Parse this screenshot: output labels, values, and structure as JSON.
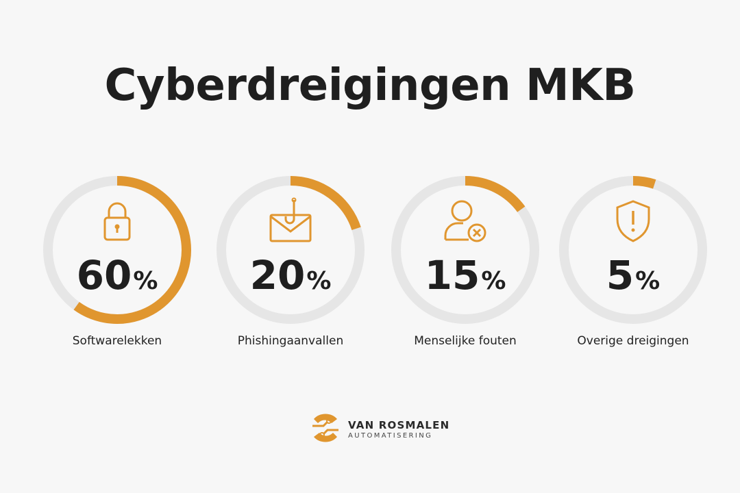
{
  "chart_data": {
    "type": "gauge",
    "title": "Cyberdreigingen MKB",
    "unit": "%",
    "items": [
      {
        "label": "Softwarelekken",
        "value": 60,
        "icon": "lock-icon"
      },
      {
        "label": "Phishingaanvallen",
        "value": 20,
        "icon": "phishing-envelope-icon"
      },
      {
        "label": "Menselijke fouten",
        "value": 15,
        "icon": "user-error-icon"
      },
      {
        "label": "Overige dreigingen",
        "value": 5,
        "icon": "shield-alert-icon"
      }
    ],
    "range": [
      0,
      100
    ]
  },
  "colors": {
    "accent": "#e0962f",
    "track": "#e6e6e6",
    "text": "#1f1f1f"
  },
  "brand": {
    "name": "VAN ROSMALEN",
    "subtitle": "AUTOMATISERING",
    "icon": "brand-logo-icon"
  }
}
